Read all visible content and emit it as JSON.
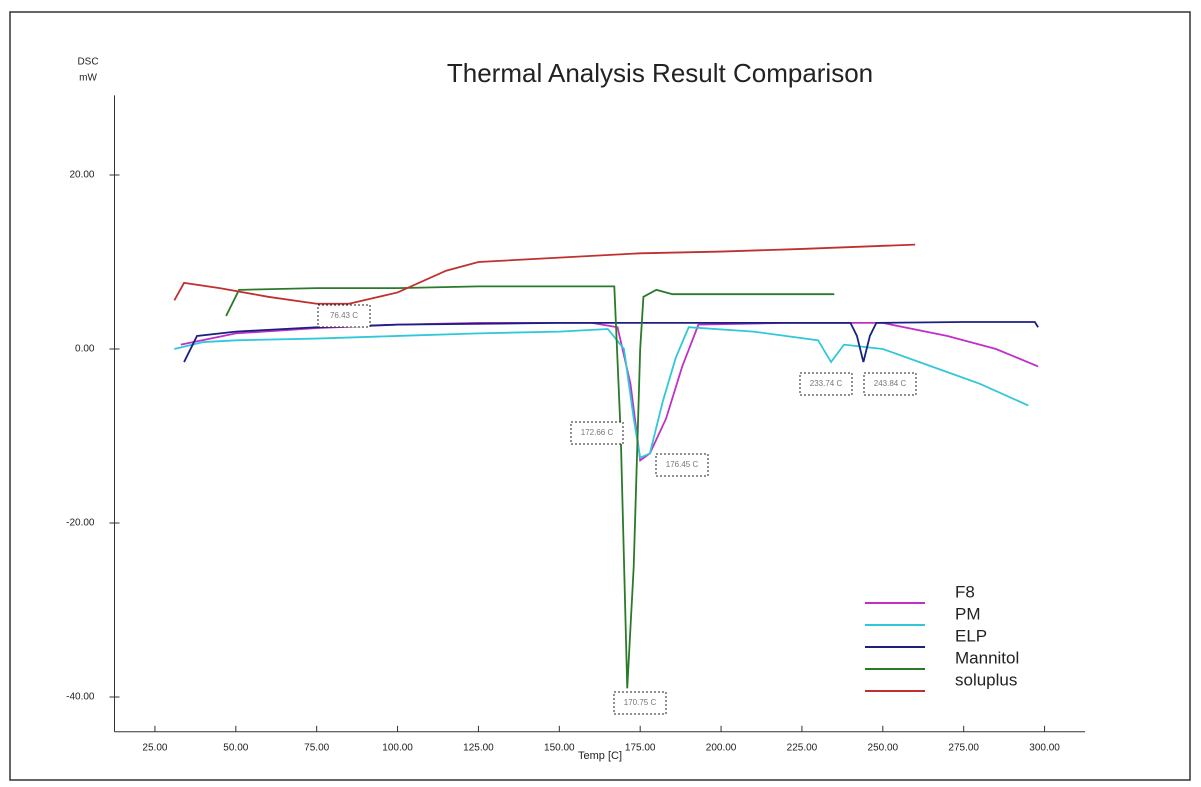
{
  "chart_data": {
    "type": "line",
    "title": "Thermal Analysis Result Comparison",
    "ylabel": [
      "DSC",
      "mW"
    ],
    "xlabel": "Temp [C]",
    "xlim": [
      12.5,
      312.5
    ],
    "ylim": [
      -44,
      28
    ],
    "xticks": [
      {
        "value": 25,
        "label": "25.00"
      },
      {
        "value": 50,
        "label": "50.00"
      },
      {
        "value": 75,
        "label": "75.00"
      },
      {
        "value": 100,
        "label": "100.00"
      },
      {
        "value": 125,
        "label": "125.00"
      },
      {
        "value": 150,
        "label": "150.00"
      },
      {
        "value": 175,
        "label": "175.00"
      },
      {
        "value": 200,
        "label": "200.00"
      },
      {
        "value": 225,
        "label": "225.00"
      },
      {
        "value": 250,
        "label": "250.00"
      },
      {
        "value": 275,
        "label": "275.00"
      },
      {
        "value": 300,
        "label": "300.00"
      }
    ],
    "yticks": [
      {
        "value": 20,
        "label": "20.00"
      },
      {
        "value": 0,
        "label": "0.00"
      },
      {
        "value": -20,
        "label": "-20.00"
      },
      {
        "value": -40,
        "label": "-40.00"
      }
    ],
    "series": [
      {
        "name": "F8",
        "color": "#c030c8",
        "x": [
          33,
          50,
          75,
          100,
          125,
          160,
          168,
          172,
          175,
          178,
          183,
          188,
          193,
          220,
          250,
          270,
          285,
          298
        ],
        "values": [
          0.5,
          1.8,
          2.4,
          2.8,
          3.0,
          3.0,
          2.5,
          -4,
          -12.8,
          -12,
          -8,
          -2,
          2.8,
          3.0,
          3.0,
          1.5,
          0,
          -2
        ]
      },
      {
        "name": "PM",
        "color": "#30c8d8",
        "x": [
          31,
          40,
          50,
          75,
          100,
          125,
          150,
          165,
          170,
          173,
          175,
          178,
          182,
          186,
          190,
          210,
          230,
          234,
          238,
          250,
          265,
          280,
          295
        ],
        "values": [
          0,
          0.8,
          1.0,
          1.2,
          1.5,
          1.8,
          2.0,
          2.3,
          0,
          -8,
          -12.5,
          -12,
          -6,
          -1,
          2.5,
          2.0,
          1.0,
          -1.5,
          0.5,
          0,
          -2,
          -4,
          -6.5
        ]
      },
      {
        "name": "ELP",
        "color": "#1a2080",
        "x": [
          34,
          38,
          50,
          75,
          100,
          150,
          200,
          240,
          242,
          244,
          246,
          248,
          275,
          297,
          298
        ],
        "values": [
          -1.5,
          1.5,
          2.0,
          2.5,
          2.8,
          3.0,
          3.0,
          3.0,
          1.5,
          -1.5,
          1.5,
          3.0,
          3.1,
          3.1,
          2.5
        ]
      },
      {
        "name": "Mannitol",
        "color": "#2a7a2a",
        "x": [
          47,
          51,
          75,
          100,
          125,
          150,
          167,
          169,
          171,
          173,
          175,
          176,
          180,
          185,
          210,
          235
        ],
        "values": [
          3.8,
          6.8,
          7.0,
          7.0,
          7.2,
          7.2,
          7.2,
          -10,
          -39,
          -25,
          0,
          6.0,
          6.8,
          6.3,
          6.3,
          6.3
        ]
      },
      {
        "name": "soluplus",
        "color": "#c03030",
        "x": [
          31,
          34,
          45,
          60,
          75,
          85,
          100,
          115,
          125,
          150,
          175,
          200,
          225,
          260
        ],
        "values": [
          5.6,
          7.6,
          7.0,
          6.0,
          5.2,
          5.2,
          6.5,
          9.0,
          10.0,
          10.5,
          11.0,
          11.2,
          11.5,
          12.0
        ]
      }
    ],
    "annotations": [
      "76.43 C",
      "172.66 C",
      "170.75 C",
      "176.45 C",
      "233.74 C",
      "243.84 C"
    ],
    "legend": "lower right"
  }
}
